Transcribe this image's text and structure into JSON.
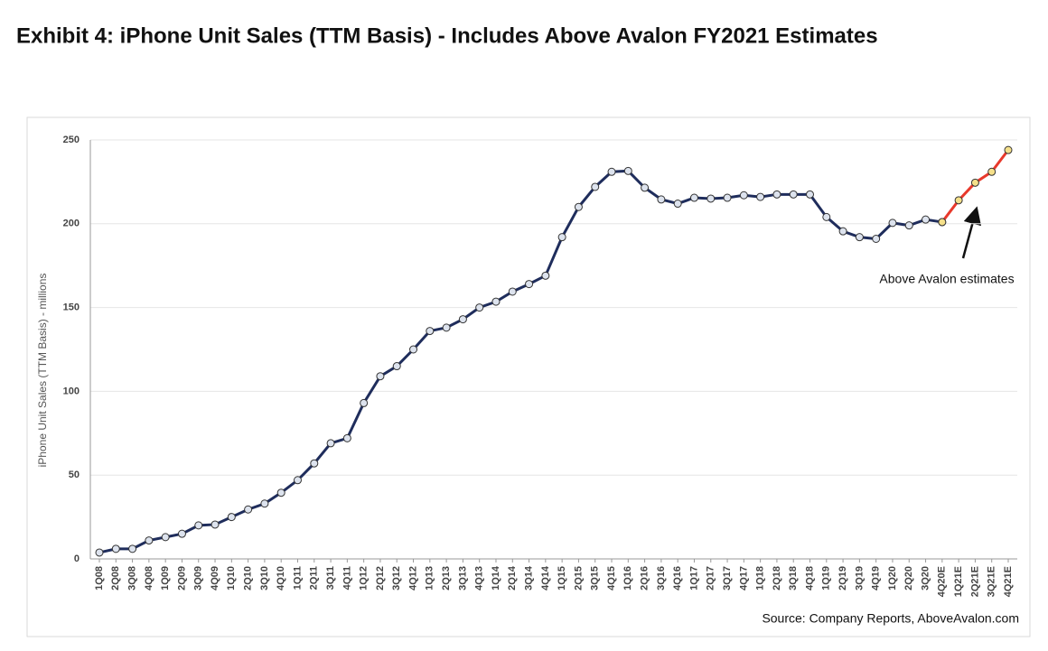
{
  "chart_data": {
    "type": "line",
    "title": "Exhibit 4: iPhone Unit Sales (TTM Basis) - Includes Above Avalon FY2021 Estimates",
    "y_label": "iPhone Unit Sales (TTM Basis) - millions",
    "source": "Source: Company Reports, AboveAvalon.com",
    "annotation": "Above Avalon estimates",
    "categories": [
      "1Q08",
      "2Q08",
      "3Q08",
      "4Q08",
      "1Q09",
      "2Q09",
      "3Q09",
      "4Q09",
      "1Q10",
      "2Q10",
      "3Q10",
      "4Q10",
      "1Q11",
      "2Q11",
      "3Q11",
      "4Q11",
      "1Q12",
      "2Q12",
      "3Q12",
      "4Q12",
      "1Q13",
      "2Q13",
      "3Q13",
      "4Q13",
      "1Q14",
      "2Q14",
      "3Q14",
      "4Q14",
      "1Q15",
      "2Q15",
      "3Q15",
      "4Q15",
      "1Q16",
      "2Q16",
      "3Q16",
      "4Q16",
      "1Q17",
      "2Q17",
      "3Q17",
      "4Q17",
      "1Q18",
      "2Q18",
      "3Q18",
      "4Q18",
      "1Q19",
      "2Q19",
      "3Q19",
      "4Q19",
      "1Q20",
      "2Q20",
      "3Q20",
      "4Q20E",
      "1Q21E",
      "2Q21E",
      "3Q21E",
      "4Q21E"
    ],
    "series": [
      {
        "color": "#1f2d5c",
        "marker_color": "#dde3ee",
        "values": [
          3.8,
          6,
          6,
          11,
          13,
          15,
          20,
          20.5,
          25,
          29.5,
          33,
          39.5,
          47,
          57,
          69,
          72,
          93,
          109,
          115,
          125,
          136,
          138,
          143,
          150,
          153.5,
          159.5,
          164,
          169,
          192,
          210,
          222,
          231,
          231.5,
          221.5,
          214.5,
          212,
          215.5,
          215,
          215.5,
          217,
          216,
          217.5,
          217.5,
          217.5,
          204,
          195.5,
          192,
          191,
          200.5,
          199,
          202.5,
          201,
          null,
          null,
          null,
          null
        ]
      },
      {
        "color": "#e8392b",
        "marker_color": "#f5e08a",
        "values": [
          null,
          null,
          null,
          null,
          null,
          null,
          null,
          null,
          null,
          null,
          null,
          null,
          null,
          null,
          null,
          null,
          null,
          null,
          null,
          null,
          null,
          null,
          null,
          null,
          null,
          null,
          null,
          null,
          null,
          null,
          null,
          null,
          null,
          null,
          null,
          null,
          null,
          null,
          null,
          null,
          null,
          null,
          null,
          null,
          null,
          null,
          null,
          null,
          null,
          null,
          null,
          201,
          214,
          224.5,
          231,
          244
        ]
      }
    ],
    "ylim": [
      0,
      250
    ],
    "yticks": [
      0,
      50,
      100,
      150,
      200,
      250
    ],
    "grid": true
  }
}
